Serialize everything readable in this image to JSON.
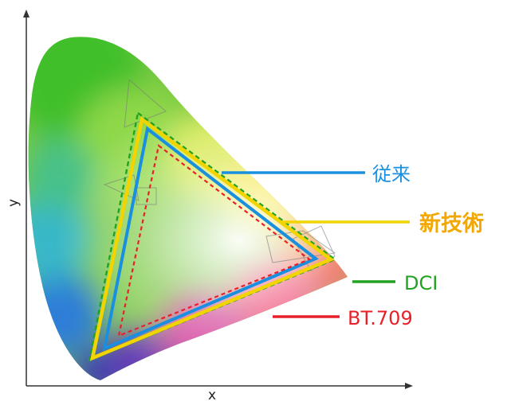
{
  "axes": {
    "x_label": "x",
    "y_label": "y"
  },
  "legend": [
    {
      "key": "conventional",
      "label": "従来",
      "color": "#1a8fe0"
    },
    {
      "key": "new_tech",
      "label": "新技術",
      "color": "#f2a800"
    },
    {
      "key": "dci",
      "label": "DCI",
      "color": "#21a321"
    },
    {
      "key": "bt709",
      "label": "BT.709",
      "color": "#e8202a"
    }
  ]
}
